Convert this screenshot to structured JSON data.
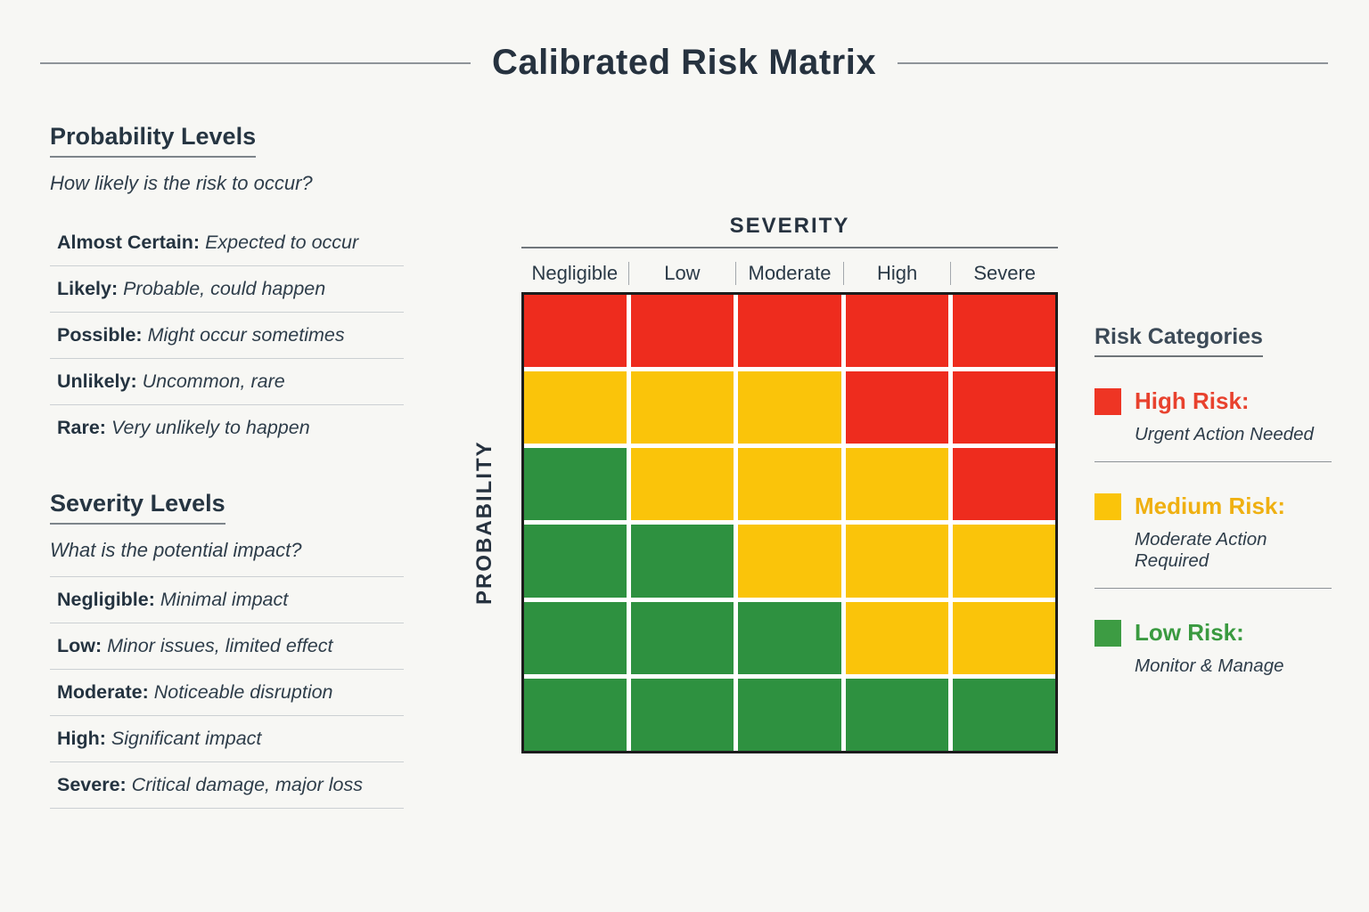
{
  "title": "Calibrated Risk Matrix",
  "left_panel": {
    "probability_section": {
      "heading": "Probability Levels",
      "question": "How likely is the risk to occur?",
      "items": [
        {
          "label": "Almost Certain:",
          "description": "Expected to occur"
        },
        {
          "label": "Likely:",
          "description": "Probable, could happen"
        },
        {
          "label": "Possible:",
          "description": "Might occur sometimes"
        },
        {
          "label": "Unlikely:",
          "description": "Uncommon, rare"
        },
        {
          "label": "Rare:",
          "description": "Very unlikely to happen"
        }
      ]
    },
    "severity_section": {
      "heading": "Severity Levels",
      "question": "What is the potential impact?",
      "items": [
        {
          "label": "Negligible:",
          "description": "Minimal impact"
        },
        {
          "label": "Low:",
          "description": "Minor issues, limited effect"
        },
        {
          "label": "Moderate:",
          "description": "Noticeable disruption"
        },
        {
          "label": "High:",
          "description": "Significant impact"
        },
        {
          "label": "Severe:",
          "description": "Critical damage, major loss"
        }
      ]
    }
  },
  "matrix": {
    "x_axis_label": "SEVERITY",
    "y_axis_label": "PROBABILITY",
    "columns": [
      "Negligible",
      "Low",
      "Moderate",
      "High",
      "Severe"
    ],
    "cell_colors": {
      "red": "#ee2c1e",
      "yellow": "#fac40a",
      "green": "#2e9140"
    },
    "cells": [
      [
        "red",
        "red",
        "red",
        "red",
        "red"
      ],
      [
        "yellow",
        "yellow",
        "yellow",
        "red",
        "red"
      ],
      [
        "green",
        "yellow",
        "yellow",
        "yellow",
        "red"
      ],
      [
        "green",
        "green",
        "yellow",
        "yellow",
        "yellow"
      ],
      [
        "green",
        "green",
        "green",
        "yellow",
        "yellow"
      ],
      [
        "green",
        "green",
        "green",
        "green",
        "green"
      ]
    ]
  },
  "legend": {
    "heading": "Risk Categories",
    "items": [
      {
        "name": "High Risk:",
        "description": "Urgent Action Needed",
        "swatch_color": "#ee3524",
        "text_color": "#e8422e"
      },
      {
        "name": "Medium Risk:",
        "description": "Moderate Action Required",
        "swatch_color": "#fac40a",
        "text_color": "#efb011"
      },
      {
        "name": "Low Risk:",
        "description": "Monitor & Manage",
        "swatch_color": "#3d9c43",
        "text_color": "#3a9a40"
      }
    ]
  }
}
